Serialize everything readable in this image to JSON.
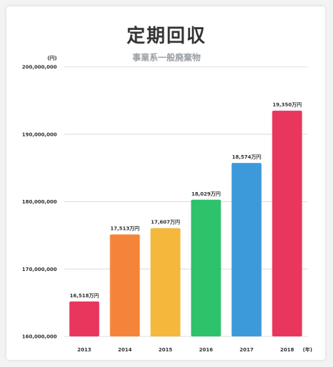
{
  "title": "定期回収",
  "subtitle": "事業系一般廃棄物",
  "chart_data": {
    "type": "bar",
    "y_unit": "(円)",
    "x_unit": "(年)",
    "categories": [
      "2013",
      "2014",
      "2015",
      "2016",
      "2017",
      "2018"
    ],
    "values": [
      165180000,
      175130000,
      176070000,
      180290000,
      185740000,
      193500000
    ],
    "data_labels": [
      "16,518万円",
      "17,513万円",
      "17,607万円",
      "18,029万円",
      "18,574万円",
      "19,350万円"
    ],
    "colors": [
      "#e8365d",
      "#f5843a",
      "#f3b83c",
      "#2ec26b",
      "#3d9ada",
      "#e8365d"
    ],
    "ylim": [
      160000000,
      200000000
    ],
    "yticks": [
      160000000,
      170000000,
      180000000,
      190000000,
      200000000
    ],
    "ytick_labels": [
      "160,000,000",
      "170,000,000",
      "180,000,000",
      "190,000,000",
      "200,000,000"
    ],
    "grid": true,
    "legend": "none"
  }
}
